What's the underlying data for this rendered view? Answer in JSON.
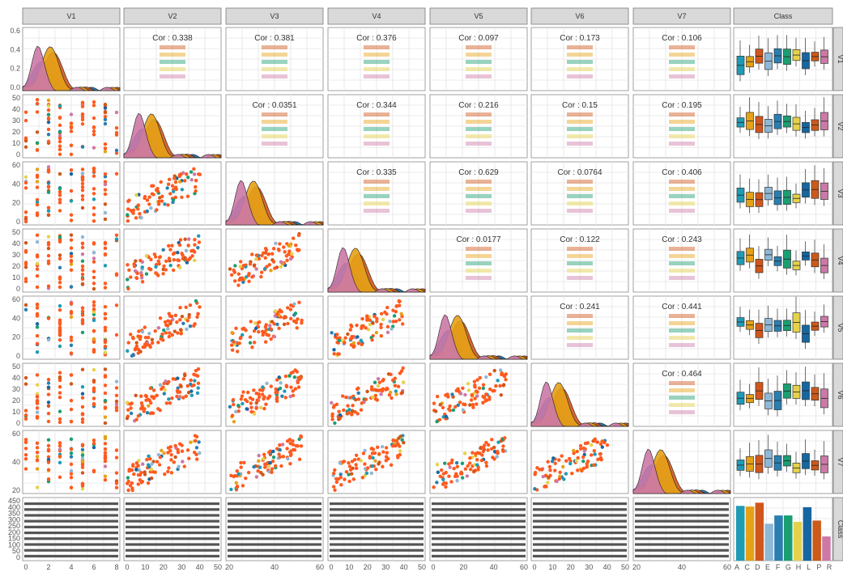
{
  "chart_data": {
    "type": "scatter-matrix",
    "variables": [
      "V1",
      "V2",
      "V3",
      "V4",
      "V5",
      "V6",
      "V7",
      "Class"
    ],
    "classes": [
      "A",
      "C",
      "D",
      "E",
      "F",
      "G",
      "H",
      "L",
      "P",
      "R"
    ],
    "class_colors": {
      "A": "#1f9bb5",
      "C": "#e6a117",
      "D": "#d1561b",
      "E": "#8fb8d6",
      "F": "#2a7fb0",
      "G": "#1a9e72",
      "H": "#e5d24a",
      "L": "#1566a1",
      "P": "#cc5a1a",
      "R": "#cc79a7"
    },
    "axis_ticks": {
      "V1": [
        "0",
        "2",
        "4",
        "6",
        "8"
      ],
      "V2": [
        "0",
        "10",
        "20",
        "30",
        "40",
        "50"
      ],
      "V3": [
        "20",
        "40",
        "60"
      ],
      "V4": [
        "0",
        "10",
        "20",
        "30",
        "40",
        "50"
      ],
      "V5": [
        "0",
        "20",
        "40",
        "60"
      ],
      "V6": [
        "0",
        "10",
        "20",
        "30",
        "40",
        "50"
      ],
      "V7": [
        "20",
        "40",
        "60"
      ],
      "Class": [
        "A",
        "C",
        "D",
        "E",
        "F",
        "G",
        "H",
        "L",
        "P",
        "R"
      ]
    },
    "row_ticks": {
      "V1": [
        "0.0",
        "0.2",
        "0.4",
        "0.6"
      ],
      "V2": [
        "0",
        "10",
        "20",
        "30",
        "40",
        "50"
      ],
      "V3": [
        "0",
        "20",
        "40",
        "60"
      ],
      "V4": [
        "0",
        "10",
        "20",
        "30",
        "40",
        "50"
      ],
      "V5": [
        "0",
        "20",
        "40",
        "60"
      ],
      "V6": [
        "0",
        "10",
        "20",
        "30",
        "40",
        "50"
      ],
      "V7": [
        "20",
        "40",
        "60"
      ],
      "Class": [
        "0",
        "50",
        "100",
        "150",
        "200",
        "250",
        "300",
        "350",
        "400",
        "450"
      ]
    },
    "correlations": [
      {
        "row": "V1",
        "col": "V2",
        "cor": "Cor : 0.338"
      },
      {
        "row": "V1",
        "col": "V3",
        "cor": "Cor : 0.381"
      },
      {
        "row": "V1",
        "col": "V4",
        "cor": "Cor : 0.376"
      },
      {
        "row": "V1",
        "col": "V5",
        "cor": "Cor : 0.097"
      },
      {
        "row": "V1",
        "col": "V6",
        "cor": "Cor : 0.173"
      },
      {
        "row": "V1",
        "col": "V7",
        "cor": "Cor : 0.106"
      },
      {
        "row": "V2",
        "col": "V3",
        "cor": "Cor : 0.0351"
      },
      {
        "row": "V2",
        "col": "V4",
        "cor": "Cor : 0.344"
      },
      {
        "row": "V2",
        "col": "V5",
        "cor": "Cor : 0.216"
      },
      {
        "row": "V2",
        "col": "V6",
        "cor": "Cor : 0.15"
      },
      {
        "row": "V2",
        "col": "V7",
        "cor": "Cor : 0.195"
      },
      {
        "row": "V3",
        "col": "V4",
        "cor": "Cor : 0.335"
      },
      {
        "row": "V3",
        "col": "V5",
        "cor": "Cor : 0.629"
      },
      {
        "row": "V3",
        "col": "V6",
        "cor": "Cor : 0.0764"
      },
      {
        "row": "V3",
        "col": "V7",
        "cor": "Cor : 0.406"
      },
      {
        "row": "V4",
        "col": "V5",
        "cor": "Cor : 0.0177"
      },
      {
        "row": "V4",
        "col": "V6",
        "cor": "Cor : 0.122"
      },
      {
        "row": "V4",
        "col": "V7",
        "cor": "Cor : 0.243"
      },
      {
        "row": "V5",
        "col": "V6",
        "cor": "Cor : 0.241"
      },
      {
        "row": "V5",
        "col": "V7",
        "cor": "Cor : 0.441"
      },
      {
        "row": "V6",
        "col": "V7",
        "cor": "Cor : 0.464"
      }
    ],
    "class_counts": {
      "A": 430,
      "C": 425,
      "D": 455,
      "E": 290,
      "F": 355,
      "G": 355,
      "H": 305,
      "L": 420,
      "P": 315,
      "R": 190
    },
    "class_count_ylim": [
      0,
      470
    ]
  }
}
